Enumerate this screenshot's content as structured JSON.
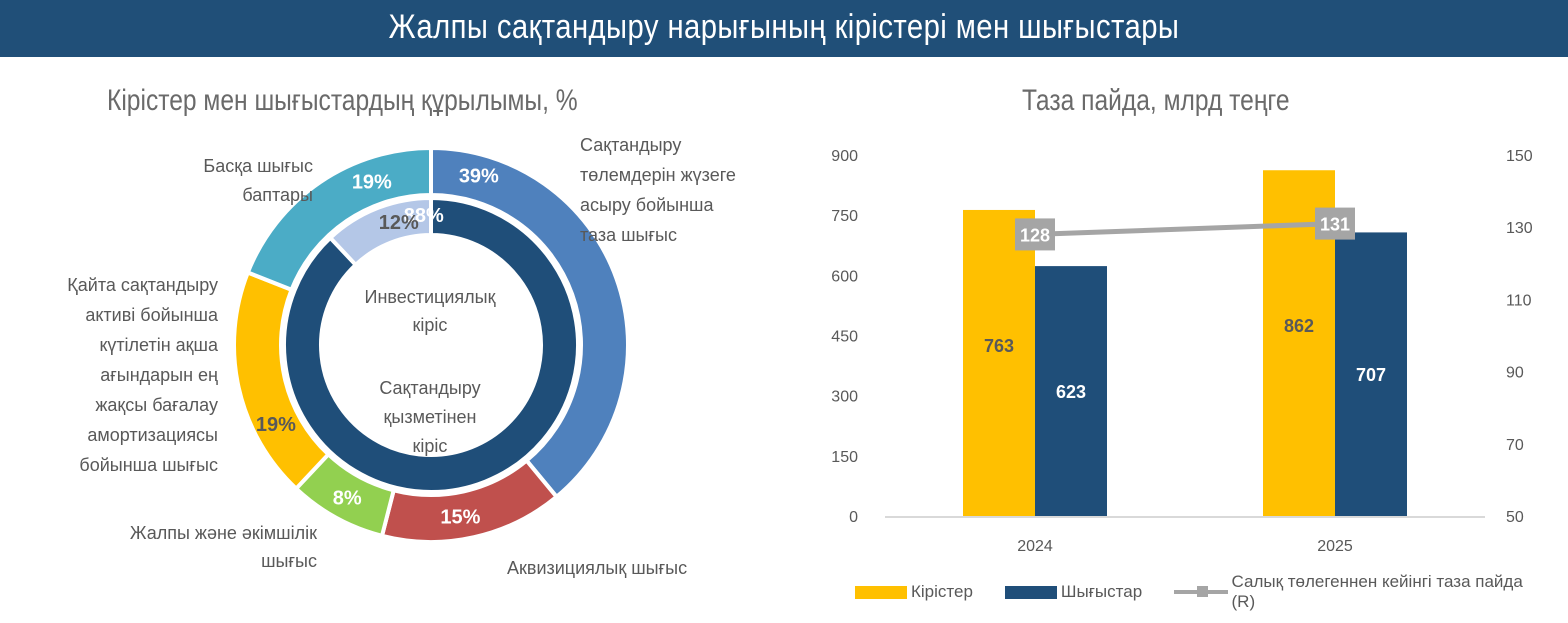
{
  "header": {
    "title": "Жалпы сақтандыру нарығының кірістері мен шығыстары"
  },
  "chart_data": [
    {
      "type": "pie",
      "variant": "double-donut",
      "title": "Кірістер мен шығыстардың құрылымы, %",
      "outer_ring": {
        "name": "Шығыстар",
        "slices": [
          {
            "label": "Сақтандыру төлемдерін жүзеге асыру бойынша таза шығыс",
            "value": 39,
            "value_label": "39%",
            "color": "#4f81bd"
          },
          {
            "label": "Аквизициялық шығыс",
            "value": 15,
            "value_label": "15%",
            "color": "#c0504d"
          },
          {
            "label": "Жалпы және әкімшілік шығыс",
            "value": 8,
            "value_label": "8%",
            "color": "#92d050"
          },
          {
            "label": "Қайта сақтандыру активі бойынша күтілетін ақша ағындарын ең жақсы бағалау амортизациясы бойынша шығыс",
            "value": 19,
            "value_label": "19%",
            "color": "#ffc000"
          },
          {
            "label": "Басқа шығыс баптары",
            "value": 19,
            "value_label": "19%",
            "color": "#4bacc6"
          }
        ]
      },
      "inner_ring": {
        "name": "Кірістер",
        "slices": [
          {
            "label": "Сақтандыру қызметінен кіріс",
            "value": 88,
            "value_label": "88%",
            "color": "#1f4e79"
          },
          {
            "label": "Инвестициялық кіріс",
            "value": 12,
            "value_label": "12%",
            "color": "#b4c7e7"
          }
        ]
      },
      "label_lines": {
        "payments": [
          "Сақтандыру",
          "төлемдерін жүзеге",
          "асыру бойынша",
          "таза шығыс"
        ],
        "acquisition": [
          "Аквизициялық шығыс"
        ],
        "general": [
          "Жалпы және әкімшілік",
          "шығыс"
        ],
        "reinsurance": [
          "Қайта сақтандыру",
          "активі бойынша",
          "күтілетін ақша",
          "ағындарын ең",
          "жақсы бағалау",
          "амортизациясы",
          "бойынша шығыс"
        ],
        "other": [
          "Басқа шығыс",
          "баптары"
        ],
        "investment": [
          "Инвестициялық",
          "кіріс"
        ],
        "insurance": [
          "Сақтандыру",
          "қызметінен",
          "кіріс"
        ]
      }
    },
    {
      "type": "bar",
      "variant": "combo-bar-line",
      "title": "Таза пайда, млрд теңге",
      "categories": [
        "2024",
        "2025"
      ],
      "series": [
        {
          "name": "Кірістер",
          "type": "bar",
          "axis": "left",
          "values": [
            763,
            862
          ],
          "labels": [
            "763",
            "862"
          ],
          "color": "#ffc000"
        },
        {
          "name": "Шығыстар",
          "type": "bar",
          "axis": "left",
          "values": [
            623,
            707
          ],
          "labels": [
            "623",
            "707"
          ],
          "color": "#1f4e79"
        },
        {
          "name": "Салық төлегеннен кейінгі таза пайда (R)",
          "type": "line",
          "axis": "right",
          "values": [
            128,
            131
          ],
          "labels": [
            "128",
            "131"
          ],
          "color": "#a5a5a5"
        }
      ],
      "y_left": {
        "ylim": [
          0,
          900
        ],
        "ticks": [
          "0",
          "150",
          "300",
          "450",
          "600",
          "750",
          "900"
        ]
      },
      "y_right": {
        "ylim": [
          50,
          150
        ],
        "ticks": [
          "50",
          "70",
          "90",
          "110",
          "130",
          "150"
        ]
      },
      "grid": false,
      "legend": "bottom"
    }
  ]
}
